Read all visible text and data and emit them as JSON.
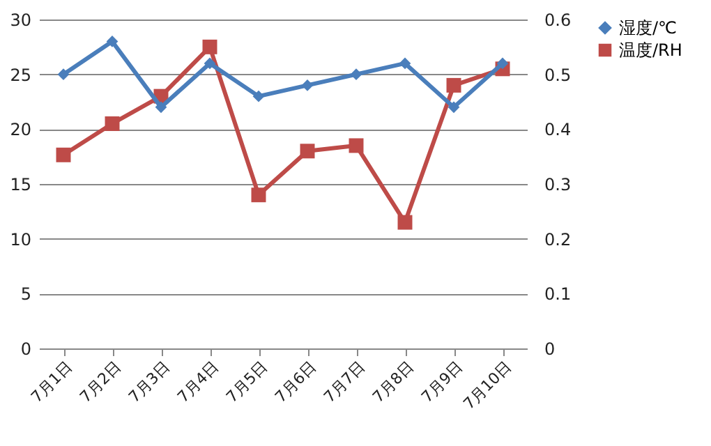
{
  "chart_data": {
    "type": "line",
    "categories": [
      "7月1日",
      "7月2日",
      "7月3日",
      "7月4日",
      "7月5日",
      "7月6日",
      "7月7日",
      "7月8日",
      "7月9日",
      "7月10日"
    ],
    "series": [
      {
        "name": "湿度/℃",
        "color": "#4a7ebb",
        "marker": "diamond",
        "values": [
          25,
          28,
          22,
          26,
          23,
          24,
          25,
          26,
          22,
          26
        ]
      },
      {
        "name": "温度/RH",
        "color": "#be4b48",
        "marker": "square",
        "axis": "y2",
        "values": [
          0.353,
          0.41,
          0.46,
          0.55,
          0.28,
          0.36,
          0.37,
          0.23,
          0.48,
          0.51
        ]
      }
    ],
    "ylim": [
      0,
      30
    ],
    "yticks": [
      0,
      5,
      10,
      15,
      20,
      25,
      30
    ],
    "y2lim": [
      0,
      0.6
    ],
    "y2ticks": [
      0,
      0.1,
      0.2,
      0.3,
      0.4,
      0.5,
      0.6
    ],
    "grid": "y",
    "legend": "right"
  }
}
